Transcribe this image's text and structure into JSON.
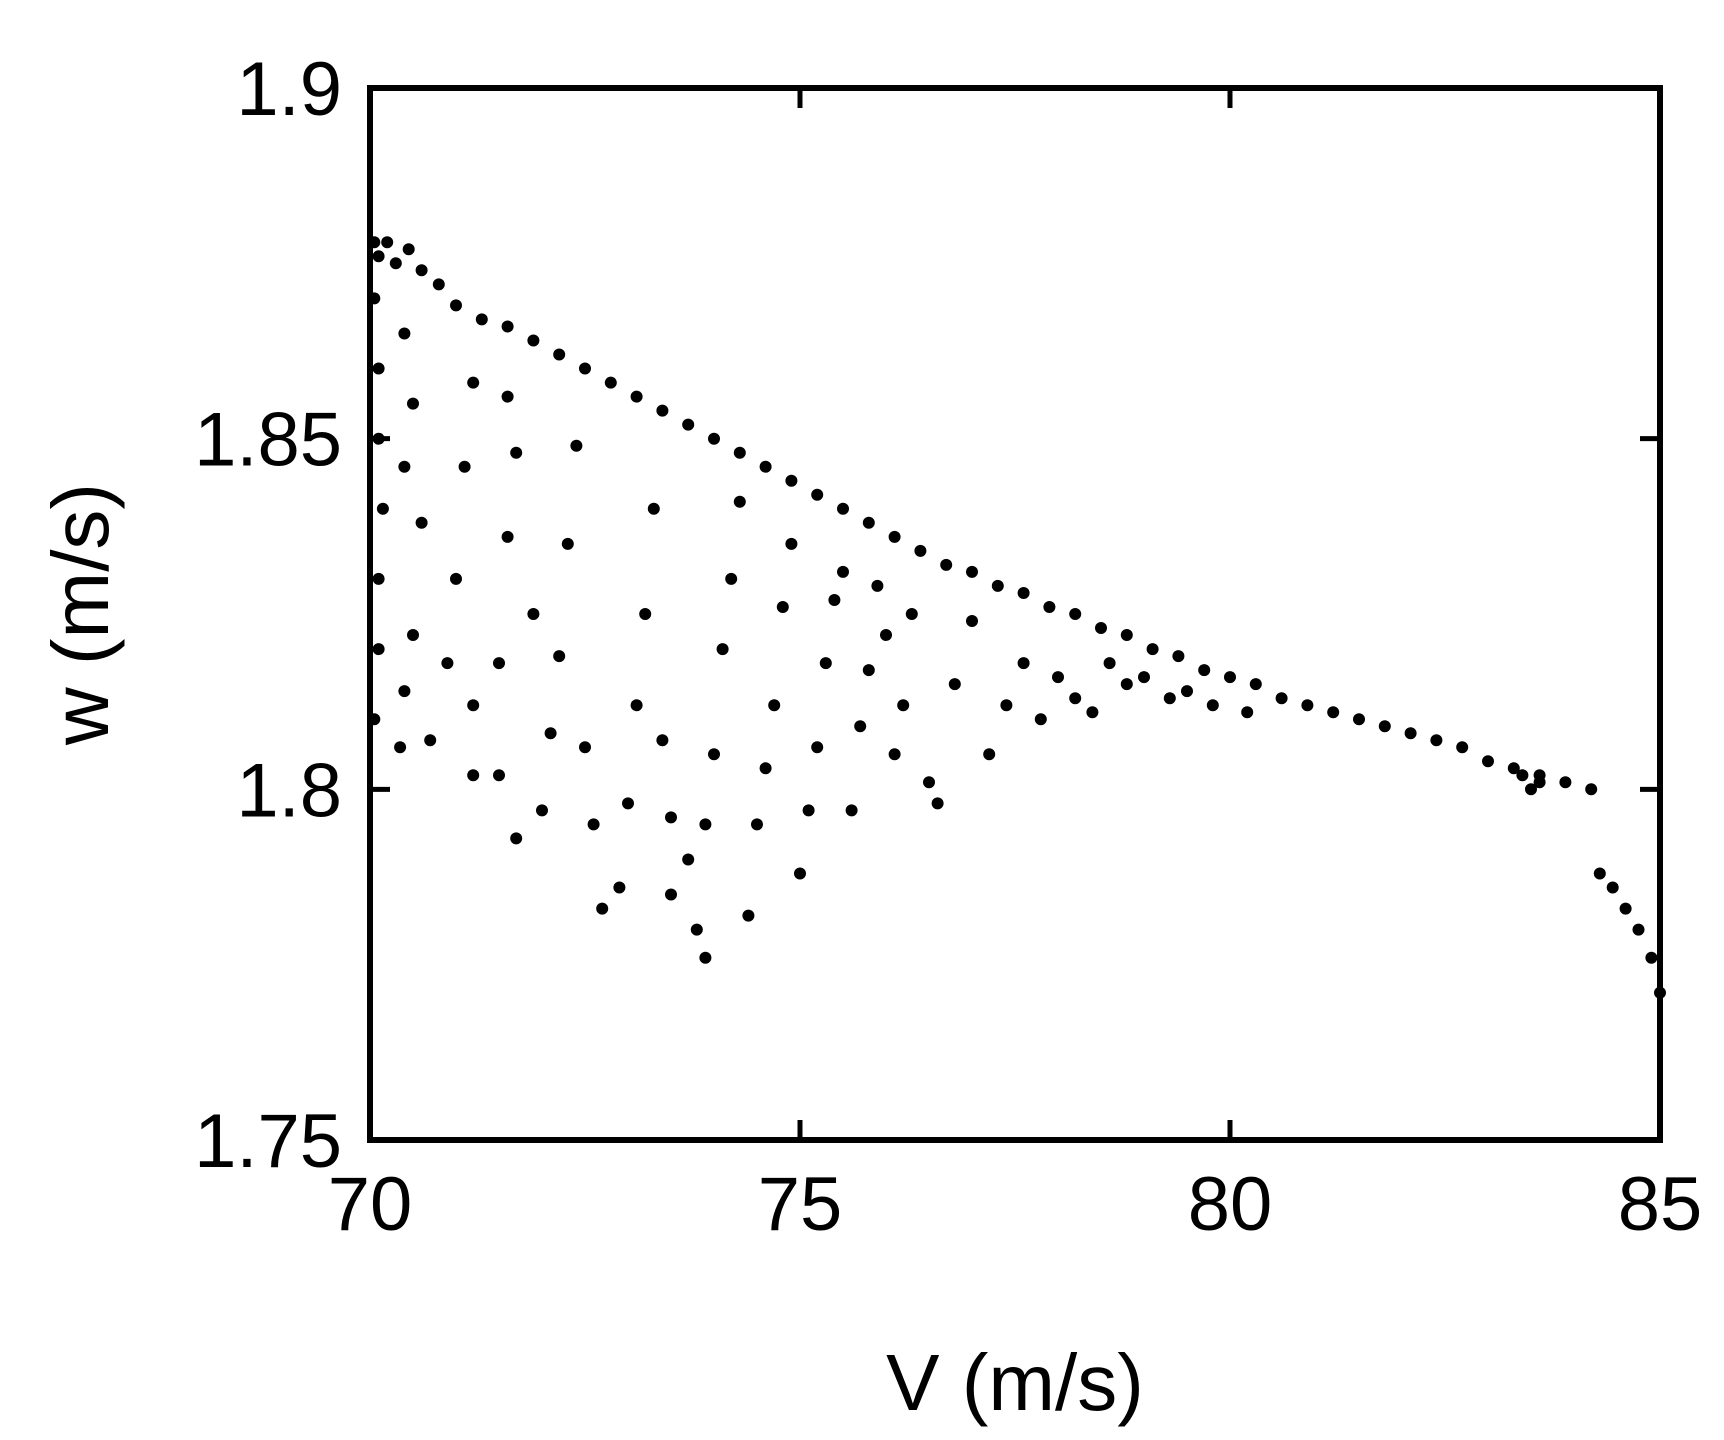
{
  "chart_data": {
    "type": "scatter",
    "title": "",
    "xlabel": "V (m/s)",
    "ylabel": "w (m/s)",
    "xlim": [
      70,
      85
    ],
    "ylim": [
      1.75,
      1.9
    ],
    "xticks": [
      "70",
      "75",
      "80",
      "85"
    ],
    "yticks": [
      "1.75",
      "1.8",
      "1.85",
      "1.9"
    ],
    "xtick_values": [
      70,
      75,
      80,
      85
    ],
    "ytick_values": [
      1.75,
      1.8,
      1.85,
      1.9
    ],
    "grid": false,
    "legend": "none",
    "marker_color": "#000000",
    "series": [
      {
        "name": "",
        "points": [
          [
            70.05,
            1.878
          ],
          [
            70.1,
            1.876
          ],
          [
            70.2,
            1.878
          ],
          [
            70.3,
            1.875
          ],
          [
            70.45,
            1.877
          ],
          [
            70.6,
            1.874
          ],
          [
            70.8,
            1.872
          ],
          [
            71.0,
            1.869
          ],
          [
            71.3,
            1.867
          ],
          [
            71.6,
            1.866
          ],
          [
            71.9,
            1.864
          ],
          [
            72.2,
            1.862
          ],
          [
            72.5,
            1.86
          ],
          [
            72.8,
            1.858
          ],
          [
            73.1,
            1.856
          ],
          [
            73.4,
            1.854
          ],
          [
            73.7,
            1.852
          ],
          [
            74.0,
            1.85
          ],
          [
            74.3,
            1.848
          ],
          [
            74.6,
            1.846
          ],
          [
            74.9,
            1.844
          ],
          [
            75.2,
            1.842
          ],
          [
            75.5,
            1.84
          ],
          [
            75.8,
            1.838
          ],
          [
            76.1,
            1.836
          ],
          [
            76.4,
            1.834
          ],
          [
            76.7,
            1.832
          ],
          [
            77.0,
            1.831
          ],
          [
            77.3,
            1.829
          ],
          [
            77.6,
            1.828
          ],
          [
            77.9,
            1.826
          ],
          [
            78.2,
            1.825
          ],
          [
            78.5,
            1.823
          ],
          [
            78.8,
            1.822
          ],
          [
            79.1,
            1.82
          ],
          [
            79.4,
            1.819
          ],
          [
            79.7,
            1.817
          ],
          [
            80.0,
            1.816
          ],
          [
            80.3,
            1.815
          ],
          [
            80.6,
            1.813
          ],
          [
            80.9,
            1.812
          ],
          [
            81.2,
            1.811
          ],
          [
            81.5,
            1.81
          ],
          [
            81.8,
            1.809
          ],
          [
            82.1,
            1.808
          ],
          [
            82.4,
            1.807
          ],
          [
            82.7,
            1.806
          ],
          [
            83.0,
            1.804
          ],
          [
            83.3,
            1.803
          ],
          [
            83.6,
            1.802
          ],
          [
            83.9,
            1.801
          ],
          [
            84.2,
            1.8
          ],
          [
            70.05,
            1.87
          ],
          [
            70.1,
            1.86
          ],
          [
            70.1,
            1.85
          ],
          [
            70.15,
            1.84
          ],
          [
            70.1,
            1.83
          ],
          [
            70.1,
            1.82
          ],
          [
            70.05,
            1.81
          ],
          [
            70.4,
            1.865
          ],
          [
            70.5,
            1.855
          ],
          [
            70.4,
            1.846
          ],
          [
            70.6,
            1.838
          ],
          [
            70.5,
            1.822
          ],
          [
            70.4,
            1.814
          ],
          [
            70.35,
            1.806
          ],
          [
            70.7,
            1.807
          ],
          [
            70.9,
            1.818
          ],
          [
            71.0,
            1.83
          ],
          [
            71.1,
            1.846
          ],
          [
            71.2,
            1.858
          ],
          [
            71.2,
            1.812
          ],
          [
            71.2,
            1.802
          ],
          [
            71.5,
            1.802
          ],
          [
            71.5,
            1.818
          ],
          [
            71.6,
            1.836
          ],
          [
            71.7,
            1.848
          ],
          [
            71.6,
            1.856
          ],
          [
            71.9,
            1.825
          ],
          [
            71.7,
            1.793
          ],
          [
            72.0,
            1.797
          ],
          [
            72.1,
            1.808
          ],
          [
            72.2,
            1.819
          ],
          [
            72.3,
            1.835
          ],
          [
            72.4,
            1.849
          ],
          [
            72.5,
            1.806
          ],
          [
            72.6,
            1.795
          ],
          [
            72.7,
            1.783
          ],
          [
            72.9,
            1.786
          ],
          [
            73.0,
            1.798
          ],
          [
            73.1,
            1.812
          ],
          [
            73.2,
            1.825
          ],
          [
            73.3,
            1.84
          ],
          [
            73.4,
            1.807
          ],
          [
            73.5,
            1.796
          ],
          [
            73.5,
            1.785
          ],
          [
            73.7,
            1.79
          ],
          [
            73.8,
            1.78
          ],
          [
            73.9,
            1.776
          ],
          [
            73.9,
            1.795
          ],
          [
            74.0,
            1.805
          ],
          [
            74.1,
            1.82
          ],
          [
            74.2,
            1.83
          ],
          [
            74.3,
            1.841
          ],
          [
            74.4,
            1.782
          ],
          [
            74.5,
            1.795
          ],
          [
            74.6,
            1.803
          ],
          [
            74.7,
            1.812
          ],
          [
            74.8,
            1.826
          ],
          [
            74.9,
            1.835
          ],
          [
            75.0,
            1.788
          ],
          [
            75.1,
            1.797
          ],
          [
            75.2,
            1.806
          ],
          [
            75.3,
            1.818
          ],
          [
            75.4,
            1.827
          ],
          [
            75.5,
            1.831
          ],
          [
            75.6,
            1.797
          ],
          [
            75.7,
            1.809
          ],
          [
            75.8,
            1.817
          ],
          [
            75.9,
            1.829
          ],
          [
            76.0,
            1.822
          ],
          [
            76.1,
            1.805
          ],
          [
            76.2,
            1.812
          ],
          [
            76.3,
            1.825
          ],
          [
            76.5,
            1.801
          ],
          [
            76.6,
            1.798
          ],
          [
            76.8,
            1.815
          ],
          [
            77.0,
            1.824
          ],
          [
            77.2,
            1.805
          ],
          [
            77.4,
            1.812
          ],
          [
            77.6,
            1.818
          ],
          [
            77.8,
            1.81
          ],
          [
            78.0,
            1.816
          ],
          [
            78.2,
            1.813
          ],
          [
            78.4,
            1.811
          ],
          [
            78.6,
            1.818
          ],
          [
            78.8,
            1.815
          ],
          [
            79.0,
            1.816
          ],
          [
            79.3,
            1.813
          ],
          [
            79.5,
            1.814
          ],
          [
            79.8,
            1.812
          ],
          [
            80.2,
            1.811
          ],
          [
            83.4,
            1.802
          ],
          [
            83.5,
            1.8
          ],
          [
            83.6,
            1.801
          ],
          [
            84.3,
            1.788
          ],
          [
            84.45,
            1.786
          ],
          [
            84.6,
            1.783
          ],
          [
            84.75,
            1.78
          ],
          [
            84.9,
            1.776
          ],
          [
            85.0,
            1.771
          ]
        ]
      }
    ]
  }
}
